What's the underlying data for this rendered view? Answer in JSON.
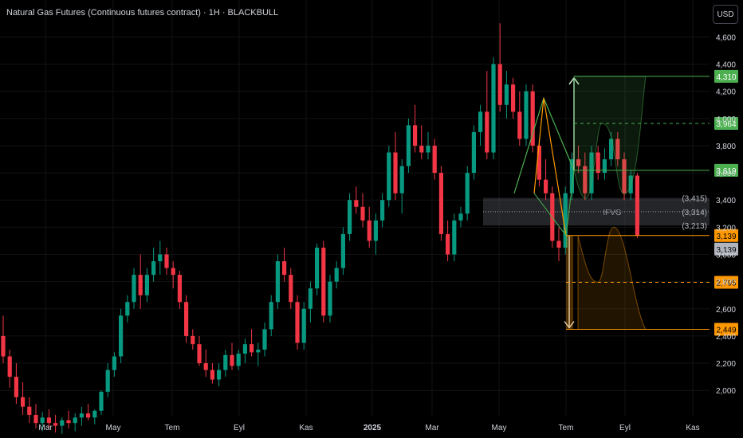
{
  "header": {
    "title": "Natural Gas Futures (Continuous futures contract) · 1H · BLACKBULL"
  },
  "currency_button": "USD",
  "colors": {
    "up": "#089981",
    "down": "#f23645",
    "grid": "#121212",
    "axis_text": "#d1d4dc",
    "green_level": "#4caf50",
    "orange_level": "#ff9800",
    "zone": "#5d606b"
  },
  "chart_data": {
    "type": "candlestick",
    "title": "Natural Gas Futures (Continuous futures contract) · 1H · BLACKBULL",
    "y_unit": "USD",
    "ylim": [
      1800,
      4700
    ],
    "y_ticks": [
      "2,000",
      "2,200",
      "2,400",
      "2,600",
      "2,800",
      "3,000",
      "3,200",
      "3,400",
      "3,600",
      "3,800",
      "4,000",
      "4,200",
      "4,400",
      "4,600"
    ],
    "x_ticks": [
      "Mar",
      "May",
      "Tem",
      "Eyl",
      "Kas",
      "2025",
      "Mar",
      "May",
      "Tem",
      "Eyl",
      "Kas"
    ],
    "candles": [
      [
        2400,
        2550,
        2200,
        2250
      ],
      [
        2250,
        2300,
        2020,
        2100
      ],
      [
        2100,
        2200,
        1900,
        1950
      ],
      [
        1950,
        2060,
        1820,
        1880
      ],
      [
        1880,
        1950,
        1760,
        1820
      ],
      [
        1820,
        1900,
        1720,
        1760
      ],
      [
        1760,
        1840,
        1700,
        1800
      ],
      [
        1800,
        1860,
        1720,
        1760
      ],
      [
        1760,
        1820,
        1690,
        1740
      ],
      [
        1740,
        1800,
        1680,
        1780
      ],
      [
        1780,
        1850,
        1720,
        1760
      ],
      [
        1760,
        1830,
        1700,
        1800
      ],
      [
        1800,
        1880,
        1740,
        1830
      ],
      [
        1830,
        1900,
        1780,
        1800
      ],
      [
        1800,
        1860,
        1750,
        1850
      ],
      [
        1850,
        2000,
        1820,
        1990
      ],
      [
        1990,
        2200,
        1950,
        2150
      ],
      [
        2150,
        2280,
        2100,
        2250
      ],
      [
        2250,
        2600,
        2200,
        2550
      ],
      [
        2550,
        2700,
        2500,
        2650
      ],
      [
        2650,
        2900,
        2600,
        2850
      ],
      [
        2850,
        3000,
        2600,
        2700
      ],
      [
        2700,
        2900,
        2650,
        2850
      ],
      [
        2850,
        3050,
        2800,
        2950
      ],
      [
        2950,
        3100,
        2850,
        3000
      ],
      [
        3000,
        3050,
        2850,
        2900
      ],
      [
        2900,
        2950,
        2750,
        2850
      ],
      [
        2850,
        2880,
        2600,
        2650
      ],
      [
        2650,
        2700,
        2350,
        2400
      ],
      [
        2400,
        2450,
        2300,
        2340
      ],
      [
        2340,
        2400,
        2180,
        2200
      ],
      [
        2200,
        2300,
        2100,
        2150
      ],
      [
        2150,
        2200,
        2050,
        2080
      ],
      [
        2080,
        2200,
        2030,
        2150
      ],
      [
        2150,
        2300,
        2100,
        2260
      ],
      [
        2260,
        2350,
        2150,
        2180
      ],
      [
        2180,
        2300,
        2150,
        2270
      ],
      [
        2270,
        2380,
        2200,
        2340
      ],
      [
        2340,
        2450,
        2250,
        2280
      ],
      [
        2280,
        2350,
        2180,
        2300
      ],
      [
        2300,
        2500,
        2250,
        2450
      ],
      [
        2450,
        2700,
        2400,
        2650
      ],
      [
        2650,
        3000,
        2600,
        2950
      ],
      [
        2950,
        3050,
        2800,
        2850
      ],
      [
        2850,
        2900,
        2600,
        2650
      ],
      [
        2650,
        2700,
        2300,
        2350
      ],
      [
        2350,
        2650,
        2300,
        2600
      ],
      [
        2600,
        2800,
        2500,
        2750
      ],
      [
        2750,
        3080,
        2700,
        3050
      ],
      [
        3050,
        3100,
        2500,
        2550
      ],
      [
        2550,
        2850,
        2500,
        2800
      ],
      [
        2800,
        2950,
        2750,
        2900
      ],
      [
        2900,
        3200,
        2850,
        3150
      ],
      [
        3150,
        3450,
        3100,
        3400
      ],
      [
        3400,
        3500,
        3300,
        3350
      ],
      [
        3350,
        3450,
        3200,
        3250
      ],
      [
        3250,
        3350,
        3050,
        3100
      ],
      [
        3100,
        3300,
        3000,
        3250
      ],
      [
        3250,
        3450,
        3200,
        3400
      ],
      [
        3400,
        3800,
        3350,
        3750
      ],
      [
        3750,
        3900,
        3400,
        3450
      ],
      [
        3450,
        3700,
        3300,
        3650
      ],
      [
        3650,
        4000,
        3600,
        3950
      ],
      [
        3950,
        4100,
        3750,
        3800
      ],
      [
        3800,
        3950,
        3700,
        3750
      ],
      [
        3750,
        3900,
        3700,
        3800
      ],
      [
        3800,
        3850,
        3550,
        3600
      ],
      [
        3600,
        3650,
        3100,
        3150
      ],
      [
        3150,
        3250,
        2950,
        3000
      ],
      [
        3000,
        3300,
        2950,
        3250
      ],
      [
        3250,
        3350,
        3200,
        3300
      ],
      [
        3300,
        3650,
        3250,
        3600
      ],
      [
        3600,
        3950,
        3550,
        3900
      ],
      [
        3900,
        4100,
        3800,
        4050
      ],
      [
        4050,
        4350,
        3700,
        3750
      ],
      [
        3750,
        4450,
        3700,
        4400
      ],
      [
        4400,
        4700,
        4050,
        4100
      ],
      [
        4100,
        4350,
        4000,
        4250
      ],
      [
        4250,
        4300,
        4000,
        4050
      ],
      [
        4050,
        4200,
        3800,
        3850
      ],
      [
        3850,
        4250,
        3800,
        4200
      ],
      [
        4200,
        4250,
        3750,
        3800
      ],
      [
        3800,
        3850,
        3500,
        3550
      ],
      [
        3550,
        3700,
        3400,
        3450
      ],
      [
        3450,
        3500,
        3050,
        3100
      ],
      [
        3100,
        3200,
        2950,
        3050
      ],
      [
        3050,
        3500,
        3000,
        3450
      ],
      [
        3450,
        3750,
        3400,
        3700
      ],
      [
        3700,
        3800,
        3600,
        3650
      ],
      [
        3650,
        3750,
        3400,
        3450
      ],
      [
        3450,
        3800,
        3400,
        3750
      ],
      [
        3750,
        3800,
        3550,
        3600
      ],
      [
        3600,
        3780,
        3550,
        3700
      ],
      [
        3700,
        3900,
        3650,
        3850
      ],
      [
        3850,
        3900,
        3650,
        3700
      ],
      [
        3700,
        3750,
        3400,
        3450
      ],
      [
        3450,
        3620,
        3400,
        3580
      ],
      [
        3580,
        3600,
        3120,
        3139
      ]
    ],
    "levels": [
      {
        "price": 4310,
        "label": "4,310",
        "style": "solid",
        "color": "#4caf50"
      },
      {
        "price": 3964,
        "label": "3,964",
        "style": "dashed",
        "color": "#4caf50"
      },
      {
        "price": 3619,
        "label": "3,619",
        "style": "solid",
        "color": "#4caf50"
      },
      {
        "price": 3139,
        "label": "3,139",
        "style": "solid",
        "color": "#ff9800"
      },
      {
        "price": 2795,
        "label": "2,795",
        "style": "dashed",
        "color": "#ff9800"
      },
      {
        "price": 2449,
        "label": "2,449",
        "style": "solid",
        "color": "#ff9800"
      }
    ],
    "current_price": {
      "price": 3139,
      "label": "3,139"
    },
    "zone": {
      "name": "IFVG",
      "top": 3415,
      "mid": 3314,
      "bottom": 3213,
      "labels": [
        "(3,415)",
        "(3,314)",
        "(3,213)"
      ]
    }
  }
}
